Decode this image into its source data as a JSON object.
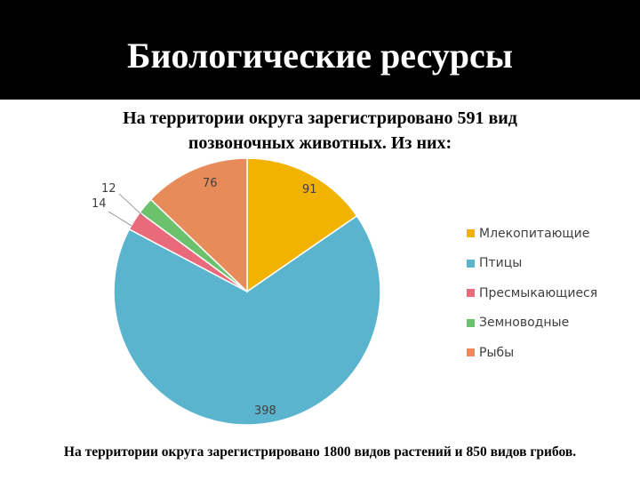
{
  "header": {
    "title": "Биологические ресурсы"
  },
  "subtitle": "На территории округа зарегистрировано 591 вид позвоночных животных. Из них:",
  "chart_data": {
    "type": "pie",
    "start_angle_deg": 0,
    "direction": "clockwise",
    "slices": [
      {
        "name": "Млекопитающие",
        "value": 91,
        "label": "91",
        "color": "#F2B200"
      },
      {
        "name": "Птицы",
        "value": 398,
        "label": "398",
        "color": "#5BB4CE"
      },
      {
        "name": "Пресмыкающиеся",
        "value": 14,
        "label": "14",
        "color": "#E86A7B"
      },
      {
        "name": "Земноводные",
        "value": 12,
        "label": "12",
        "color": "#6CC26C"
      },
      {
        "name": "Рыбы",
        "value": 76,
        "label": "76",
        "color": "#E88B5A"
      }
    ],
    "legend_position": "right"
  },
  "footer": "На территории округа зарегистрировано 1800 видов растений и 850 видов грибов."
}
